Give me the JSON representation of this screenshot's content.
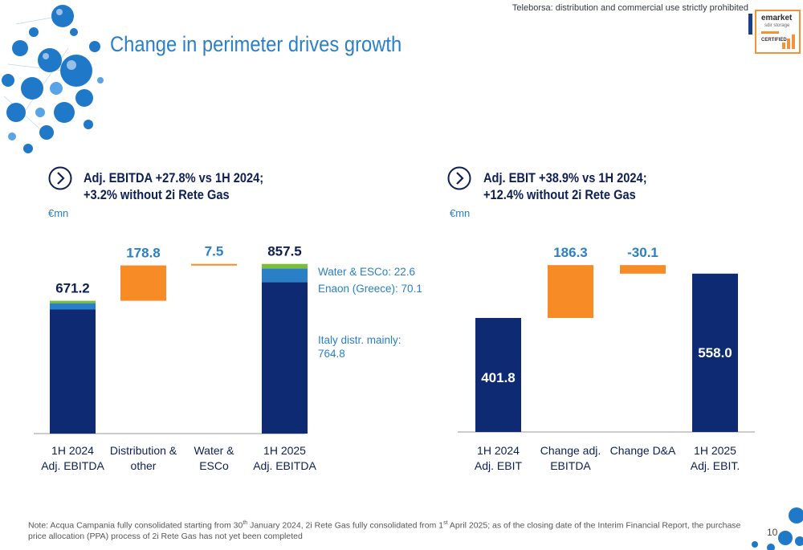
{
  "header": {
    "disclaimer": "Teleborsa: distribution and commercial use strictly prohibited",
    "title": "Change in perimeter drives growth",
    "logo": {
      "line1": "emarket",
      "line2": "sdir storage",
      "line3": "CERTIFIED"
    }
  },
  "colors": {
    "navy": "#0d2a73",
    "light_blue": "#2a80c6",
    "orange": "#f78b25",
    "green": "#7cbd3c"
  },
  "chart_data": [
    {
      "type": "bar",
      "variant": "waterfall",
      "headline": [
        "Adj. EBITDA +27.8% vs 1H 2024;",
        "+3.2% without 2i Rete Gas"
      ],
      "unit": "€mn",
      "categories": [
        [
          "1H 2024",
          "Adj. EBITDA"
        ],
        [
          "Distribution &",
          "other"
        ],
        [
          "Water &",
          "ESCo"
        ],
        [
          "1H 2025",
          "Adj. EBITDA"
        ]
      ],
      "value_labels": [
        "671.2",
        "178.8",
        "7.5",
        "857.5"
      ],
      "bars": [
        {
          "kind": "total",
          "segments": [
            {
              "name": "Italy distr. mainly",
              "value": 627.0,
              "color": "#0d2a73"
            },
            {
              "name": "Enaon (Greece)",
              "value": 32.0,
              "color": "#2a80c6"
            },
            {
              "name": "Water & ESCo",
              "value": 12.2,
              "color": "#7cbd3c"
            }
          ]
        },
        {
          "kind": "delta",
          "base": 671.2,
          "value": 178.8,
          "color": "#f78b25"
        },
        {
          "kind": "delta",
          "base": 850.0,
          "value": 7.5,
          "color": "#f78b25"
        },
        {
          "kind": "total",
          "segments": [
            {
              "name": "Italy distr. mainly",
              "value": 764.8,
              "color": "#0d2a73"
            },
            {
              "name": "Enaon (Greece)",
              "value": 70.1,
              "color": "#2a80c6"
            },
            {
              "name": "Water & ESCo",
              "value": 22.6,
              "color": "#7cbd3c"
            }
          ]
        }
      ],
      "annotations": [
        "Water & ESCo: 22.6",
        "Enaon (Greece): 70.1",
        "Italy distr. mainly:",
        "764.8"
      ],
      "ylim": [
        0,
        900
      ]
    },
    {
      "type": "bar",
      "variant": "waterfall",
      "headline": [
        "Adj. EBIT +38.9% vs 1H 2024;",
        "+12.4% without 2i Rete Gas"
      ],
      "unit": "€mn",
      "categories": [
        [
          "1H 2024",
          "Adj. EBIT"
        ],
        [
          "Change adj.",
          "EBITDA"
        ],
        [
          "Change D&A",
          ""
        ],
        [
          "1H 2025",
          "Adj. EBIT."
        ]
      ],
      "value_labels": [
        "401.8",
        "186.3",
        "-30.1",
        "558.0"
      ],
      "bars": [
        {
          "kind": "total",
          "value": 401.8,
          "color": "#0d2a73"
        },
        {
          "kind": "delta",
          "base": 401.8,
          "value": 186.3,
          "color": "#f78b25"
        },
        {
          "kind": "delta",
          "base": 588.1,
          "value": -30.1,
          "color": "#f78b25"
        },
        {
          "kind": "total",
          "value": 558.0,
          "color": "#0d2a73"
        }
      ],
      "ylim": [
        0,
        620
      ]
    }
  ],
  "footer": {
    "note_parts": [
      "Note: Acqua Campania fully consolidated starting from 30",
      "th",
      " January 2024, 2i Rete Gas fully consolidated from 1",
      "st",
      " April 2025; as of the closing date of the Interim Financial Report, the purchase price allocation (PPA) process of 2i Rete Gas has not yet been completed"
    ],
    "page_number": "10"
  }
}
